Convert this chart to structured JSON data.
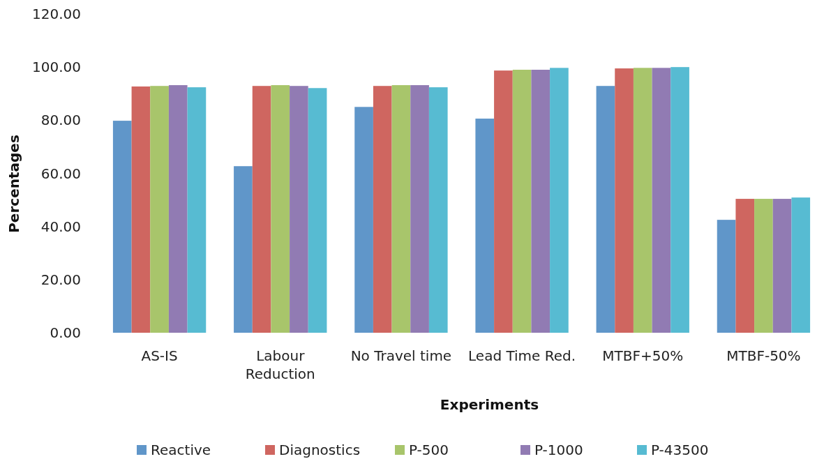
{
  "chart_data": {
    "type": "bar",
    "xlabel": "Experiments",
    "ylabel": "Percentages",
    "categories": [
      "AS-IS",
      "Labour Reduction",
      "No Travel time",
      "Lead Time Red.",
      "MTBF+50%",
      "MTBF-50%"
    ],
    "series": [
      {
        "name": "Reactive",
        "color": "#6096c9",
        "values": [
          79.8,
          62.7,
          85.0,
          80.6,
          92.9,
          42.5
        ]
      },
      {
        "name": "Diagnostics",
        "color": "#cf6660",
        "values": [
          92.7,
          92.9,
          92.9,
          98.7,
          99.5,
          50.4
        ]
      },
      {
        "name": "P-500",
        "color": "#a8c56b",
        "values": [
          92.9,
          93.2,
          93.2,
          99.0,
          99.7,
          50.4
        ]
      },
      {
        "name": "P-1000",
        "color": "#917bb3",
        "values": [
          93.2,
          92.9,
          93.2,
          99.0,
          99.7,
          50.4
        ]
      },
      {
        "name": "P-43500",
        "color": "#57bbd2",
        "values": [
          92.4,
          92.1,
          92.4,
          99.7,
          100.0,
          50.9
        ]
      }
    ],
    "ylim": [
      0,
      120
    ],
    "yticks": [
      {
        "value": 0,
        "label": "0.00"
      },
      {
        "value": 20,
        "label": "20.00"
      },
      {
        "value": 40,
        "label": "40.00"
      },
      {
        "value": 60,
        "label": "60.00"
      },
      {
        "value": 80,
        "label": "80.00"
      },
      {
        "value": 100,
        "label": "100.00"
      },
      {
        "value": 120,
        "label": "120.00"
      }
    ],
    "grid": false,
    "legend": "bottom"
  }
}
